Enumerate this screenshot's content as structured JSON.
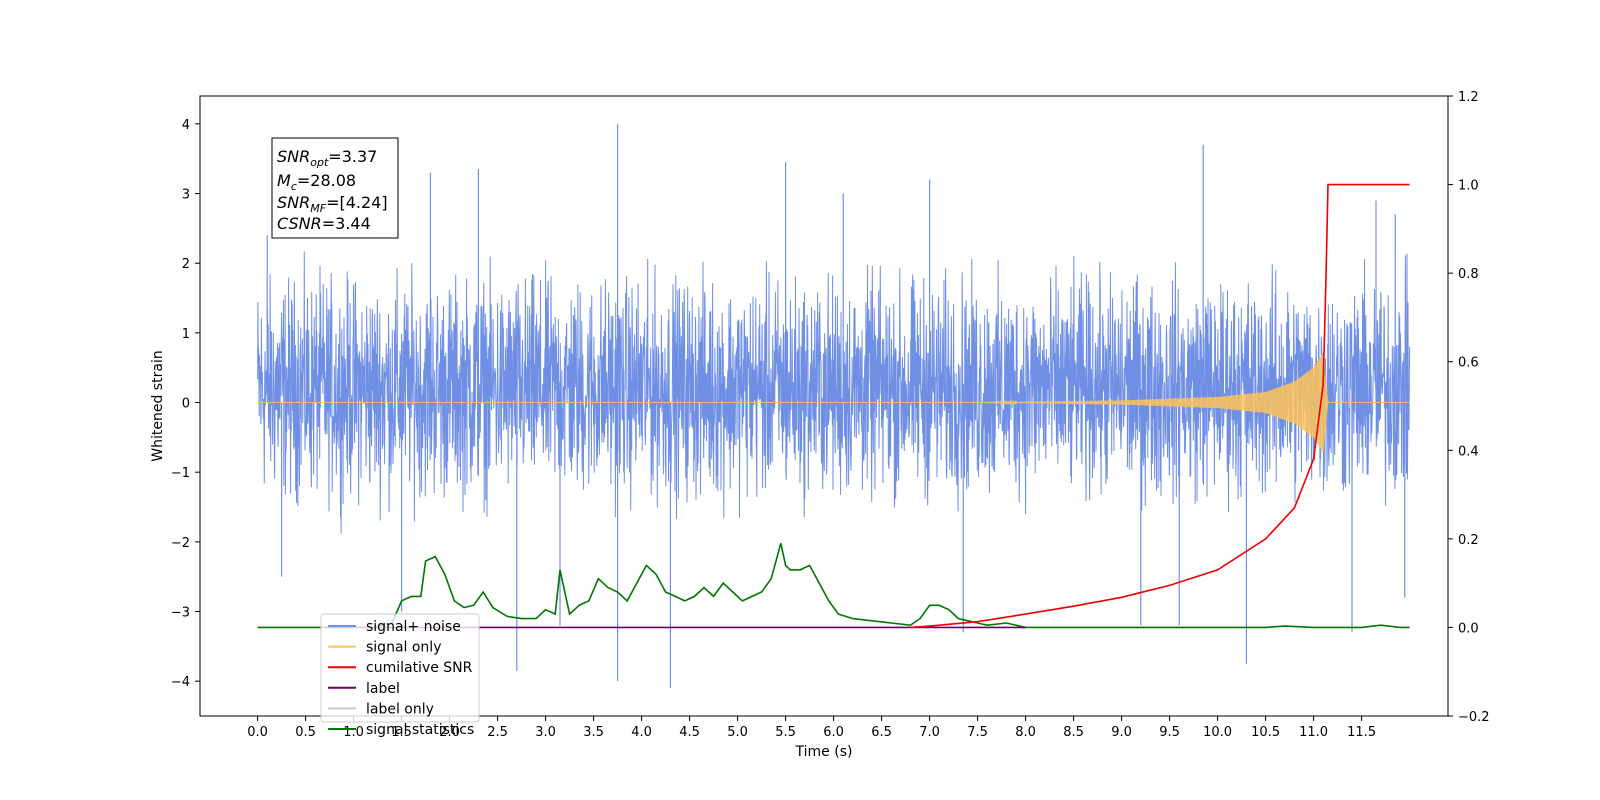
{
  "chart_data": {
    "type": "line",
    "xlabel": "Time (s)",
    "ylabel": "Whitened strain",
    "xlim": [
      -0.6,
      12.4
    ],
    "ylim": [
      -4.5,
      4.4
    ],
    "ylim_right": [
      -0.2,
      1.2
    ],
    "x_ticks": [
      0.0,
      0.5,
      1.0,
      1.5,
      2.0,
      2.5,
      3.0,
      3.5,
      4.0,
      4.5,
      5.0,
      5.5,
      6.0,
      6.5,
      7.0,
      7.5,
      8.0,
      8.5,
      9.0,
      9.5,
      10.0,
      10.5,
      11.0,
      11.5
    ],
    "x_tick_labels": [
      "0.0",
      "0.5",
      "1.0",
      "1.5",
      "2.0",
      "2.5",
      "3.0",
      "3.5",
      "4.0",
      "4.5",
      "5.0",
      "5.5",
      "6.0",
      "6.5",
      "7.0",
      "7.5",
      "8.0",
      "8.5",
      "9.0",
      "9.5",
      "10.0",
      "10.5",
      "11.0",
      "11.5"
    ],
    "y_ticks": [
      4,
      3,
      2,
      1,
      0,
      -1,
      -2,
      -3,
      -4
    ],
    "y_tick_labels": [
      "4",
      "3",
      "2",
      "1",
      "0",
      "−1",
      "−2",
      "−3",
      "−4"
    ],
    "y_right_ticks": [
      1.2,
      1.0,
      0.8,
      0.6,
      0.4,
      0.2,
      0.0,
      -0.2
    ],
    "y_right_tick_labels": [
      "1.2",
      "1.0",
      "0.8",
      "0.6",
      "0.4",
      "0.2",
      "0.0",
      "−0.2"
    ],
    "grid": false,
    "legend_position": "bottom-left",
    "annotations": [
      {
        "sym": "SNR",
        "sub": "opt",
        "value": "=3.37"
      },
      {
        "sym": "M",
        "sub": "c",
        "value": "=28.08"
      },
      {
        "sym": "SNR",
        "sub": "MF",
        "value": "=[4.24]"
      },
      {
        "sym": "CSNR",
        "sub": "",
        "value": "=3.44"
      }
    ],
    "series": [
      {
        "name": "signal+ noise",
        "color": "#6f8fe5",
        "axis": "left",
        "noise_band": [
          -2.0,
          2.4
        ],
        "x": [
          0.0,
          12.0
        ],
        "spikes": [
          [
            0.1,
            2.4
          ],
          [
            0.25,
            -2.5
          ],
          [
            1.5,
            -3.0
          ],
          [
            1.8,
            3.3
          ],
          [
            2.3,
            3.35
          ],
          [
            2.7,
            -3.85
          ],
          [
            3.15,
            -3.2
          ],
          [
            3.75,
            4.0
          ],
          [
            3.75,
            -4.0
          ],
          [
            4.3,
            -4.1
          ],
          [
            5.5,
            3.45
          ],
          [
            6.1,
            3.0
          ],
          [
            7.0,
            3.2
          ],
          [
            7.35,
            -3.3
          ],
          [
            9.2,
            -3.2
          ],
          [
            9.6,
            -3.2
          ],
          [
            9.85,
            3.7
          ],
          [
            10.3,
            -3.75
          ],
          [
            11.4,
            -3.3
          ],
          [
            11.65,
            2.9
          ],
          [
            11.85,
            2.7
          ],
          [
            11.95,
            -2.8
          ]
        ]
      },
      {
        "name": "signal only",
        "color": "#ffc35a",
        "axis": "left",
        "x": [
          0.0,
          7.5,
          9.0,
          10.0,
          10.5,
          10.8,
          11.0,
          11.1,
          11.15,
          12.0
        ],
        "amplitude": [
          0.0,
          0.0,
          0.03,
          0.08,
          0.15,
          0.3,
          0.5,
          0.72,
          0.0,
          0.0
        ]
      },
      {
        "name": "cumilative SNR",
        "color": "#ee0000",
        "axis": "right",
        "x": [
          6.8,
          7.0,
          7.5,
          8.0,
          8.5,
          9.0,
          9.5,
          10.0,
          10.5,
          10.8,
          11.0,
          11.1,
          11.13,
          11.15,
          12.0
        ],
        "y": [
          0.0,
          0.003,
          0.013,
          0.03,
          0.048,
          0.068,
          0.095,
          0.13,
          0.2,
          0.27,
          0.38,
          0.55,
          0.8,
          1.0,
          1.0
        ]
      },
      {
        "name": "label",
        "color": "#6a006a",
        "axis": "right",
        "x": [
          0.7,
          8.0
        ],
        "y": [
          0.0,
          0.0
        ]
      },
      {
        "name": "label only",
        "color": "#c9c9c9",
        "axis": "right",
        "x": [],
        "y": []
      },
      {
        "name": "signal statistics",
        "color": "#007700",
        "axis": "right",
        "x": [
          0.0,
          1.2,
          1.4,
          1.5,
          1.6,
          1.7,
          1.75,
          1.85,
          1.95,
          2.05,
          2.15,
          2.25,
          2.35,
          2.45,
          2.6,
          2.75,
          2.9,
          3.0,
          3.1,
          3.15,
          3.25,
          3.35,
          3.45,
          3.55,
          3.65,
          3.75,
          3.85,
          3.95,
          4.05,
          4.15,
          4.25,
          4.35,
          4.45,
          4.55,
          4.65,
          4.75,
          4.85,
          4.95,
          5.05,
          5.15,
          5.25,
          5.35,
          5.45,
          5.5,
          5.55,
          5.65,
          5.75,
          5.85,
          5.95,
          6.05,
          6.2,
          6.4,
          6.6,
          6.8,
          6.9,
          7.0,
          7.1,
          7.2,
          7.3,
          7.4,
          7.5,
          7.6,
          7.8,
          8.0,
          10.5,
          10.7,
          11.0,
          11.5,
          11.7,
          11.9,
          12.0
        ],
        "y": [
          0.0,
          0.0,
          0.01,
          0.06,
          0.07,
          0.07,
          0.15,
          0.16,
          0.12,
          0.06,
          0.045,
          0.05,
          0.08,
          0.045,
          0.025,
          0.02,
          0.02,
          0.04,
          0.03,
          0.13,
          0.03,
          0.05,
          0.06,
          0.11,
          0.09,
          0.08,
          0.06,
          0.1,
          0.14,
          0.12,
          0.08,
          0.07,
          0.06,
          0.07,
          0.09,
          0.07,
          0.1,
          0.08,
          0.06,
          0.07,
          0.08,
          0.11,
          0.19,
          0.14,
          0.13,
          0.13,
          0.14,
          0.1,
          0.06,
          0.03,
          0.02,
          0.015,
          0.01,
          0.005,
          0.02,
          0.05,
          0.05,
          0.04,
          0.02,
          0.015,
          0.01,
          0.005,
          0.01,
          0.0,
          0.0,
          0.003,
          0.0,
          0.0,
          0.005,
          0.0,
          0.0
        ]
      }
    ]
  }
}
